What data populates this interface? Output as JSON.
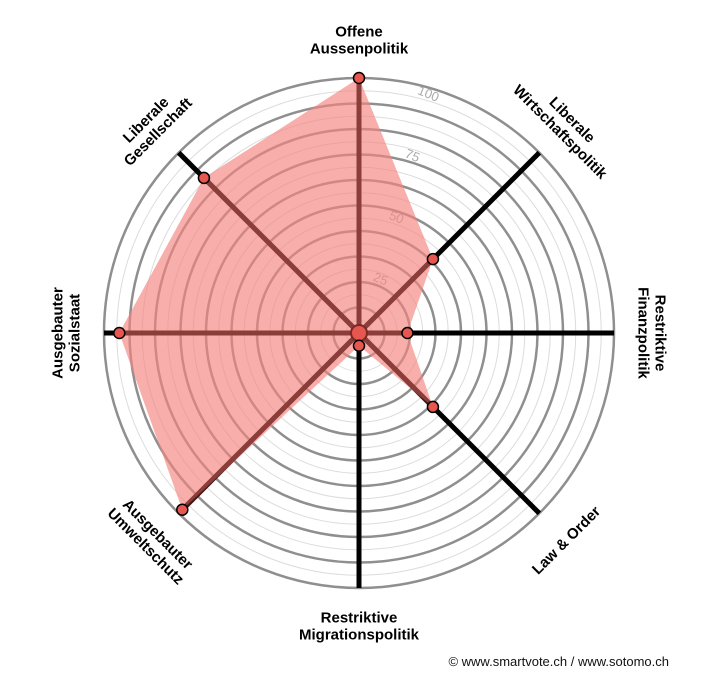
{
  "chart_data": {
    "type": "radar",
    "axes": [
      {
        "label": [
          "Offene",
          "Aussenpolitik"
        ],
        "value": 100
      },
      {
        "label": [
          "Liberale",
          "Wirtschaftspolitik"
        ],
        "value": 41
      },
      {
        "label": [
          "Restriktive",
          "Finanzpolitik"
        ],
        "value": 19
      },
      {
        "label": [
          "Law & Order"
        ],
        "value": 41
      },
      {
        "label": [
          "Restriktive",
          "Migrationspolitik"
        ],
        "value": 5
      },
      {
        "label": [
          "Ausgebauter",
          "Umweltschutz"
        ],
        "value": 98
      },
      {
        "label": [
          "Ausgebauter",
          "Sozialstaat"
        ],
        "value": 94
      },
      {
        "label": [
          "Liberale",
          "Gesellschaft"
        ],
        "value": 86
      }
    ],
    "rlim": [
      0,
      100
    ],
    "ring_labels": [
      "25",
      "50",
      "75",
      "100"
    ],
    "fill_color": "#f4837c",
    "point_color": "#e8574f",
    "spoke_color": "#000000"
  },
  "credit": "© www.smartvote.ch / www.sotomo.ch"
}
